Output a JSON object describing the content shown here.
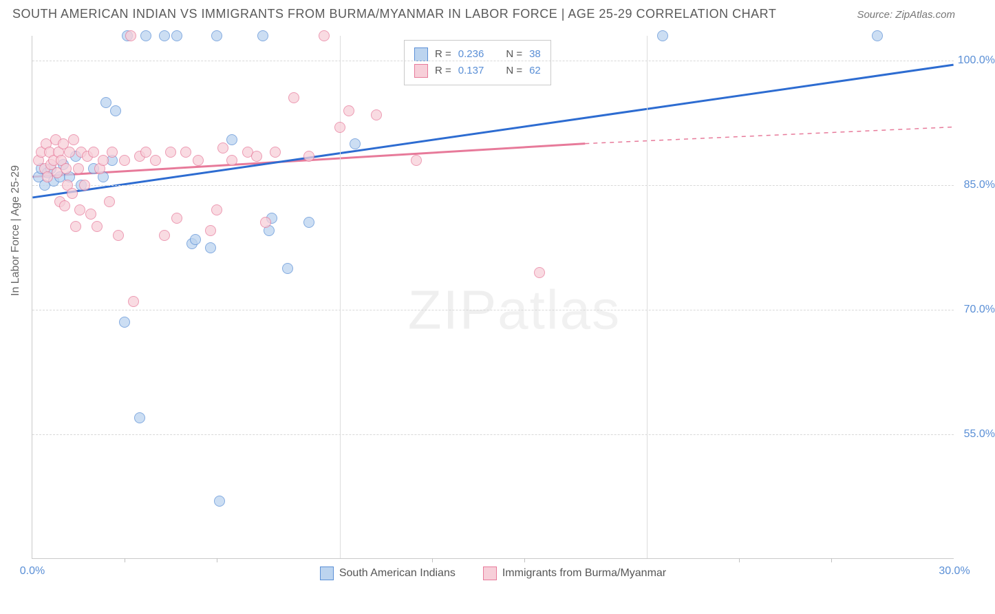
{
  "header": {
    "title": "SOUTH AMERICAN INDIAN VS IMMIGRANTS FROM BURMA/MYANMAR IN LABOR FORCE | AGE 25-29 CORRELATION CHART",
    "source_label": "Source: ZipAtlas.com"
  },
  "chart": {
    "type": "scatter",
    "background_color": "#ffffff",
    "grid_color": "#d8d8d8",
    "axis_color": "#c9c9c9",
    "ylabel": "In Labor Force | Age 25-29",
    "label_fontsize": 16,
    "label_color": "#666666",
    "tick_color": "#5a8fd6",
    "xlim": [
      0,
      30
    ],
    "ylim": [
      40,
      103
    ],
    "xticks": [
      0,
      10,
      20,
      30
    ],
    "xtick_labels": [
      "0.0%",
      "",
      "",
      "30.0%"
    ],
    "yticks": [
      55,
      70,
      85,
      100
    ],
    "ytick_labels": [
      "55.0%",
      "70.0%",
      "85.0%",
      "100.0%"
    ],
    "xgrid_at": [
      10,
      20
    ],
    "tick_marks_x": [
      3,
      6,
      13,
      16,
      23,
      26
    ],
    "series": [
      {
        "key": "blue",
        "name": "South American Indians",
        "color_fill": "#bcd4ef",
        "color_stroke": "#5a8fd6",
        "R": "0.236",
        "N": "38",
        "trend": {
          "x1": 0,
          "y1": 83.5,
          "x2": 30,
          "y2": 99.5,
          "dash_from_x": 30
        },
        "points": [
          [
            0.2,
            86
          ],
          [
            0.3,
            87
          ],
          [
            0.4,
            85
          ],
          [
            0.5,
            86.5
          ],
          [
            0.6,
            87
          ],
          [
            0.7,
            85.5
          ],
          [
            0.9,
            86
          ],
          [
            1.0,
            87.5
          ],
          [
            1.2,
            86
          ],
          [
            1.4,
            88.5
          ],
          [
            1.6,
            85
          ],
          [
            2.0,
            87
          ],
          [
            2.3,
            86
          ],
          [
            2.4,
            95
          ],
          [
            2.6,
            88
          ],
          [
            2.7,
            94
          ],
          [
            3.0,
            68.5
          ],
          [
            3.1,
            103
          ],
          [
            3.5,
            57
          ],
          [
            3.7,
            103
          ],
          [
            4.3,
            103
          ],
          [
            4.7,
            103
          ],
          [
            5.2,
            78
          ],
          [
            5.3,
            78.5
          ],
          [
            5.8,
            77.5
          ],
          [
            6.0,
            103
          ],
          [
            6.1,
            47
          ],
          [
            6.5,
            90.5
          ],
          [
            7.5,
            103
          ],
          [
            7.7,
            79.5
          ],
          [
            7.8,
            81
          ],
          [
            8.3,
            75
          ],
          [
            9.0,
            80.5
          ],
          [
            10.5,
            90
          ],
          [
            20.5,
            103
          ],
          [
            27.5,
            103
          ]
        ]
      },
      {
        "key": "pink",
        "name": "Immigrants from Burma/Myanmar",
        "color_fill": "#f7cfd9",
        "color_stroke": "#e77a9a",
        "R": "0.137",
        "N": "62",
        "trend": {
          "x1": 0,
          "y1": 86,
          "x2": 18,
          "y2": 90,
          "dash_from_x": 18,
          "dash_to_x": 30,
          "dash_to_y": 92
        },
        "points": [
          [
            0.2,
            88
          ],
          [
            0.3,
            89
          ],
          [
            0.4,
            87
          ],
          [
            0.45,
            90
          ],
          [
            0.5,
            86
          ],
          [
            0.55,
            89
          ],
          [
            0.6,
            87.5
          ],
          [
            0.7,
            88
          ],
          [
            0.75,
            90.5
          ],
          [
            0.8,
            86.5
          ],
          [
            0.85,
            89
          ],
          [
            0.9,
            83
          ],
          [
            0.95,
            88
          ],
          [
            1.0,
            90
          ],
          [
            1.05,
            82.5
          ],
          [
            1.1,
            87
          ],
          [
            1.15,
            85
          ],
          [
            1.2,
            89
          ],
          [
            1.3,
            84
          ],
          [
            1.35,
            90.5
          ],
          [
            1.4,
            80
          ],
          [
            1.5,
            87
          ],
          [
            1.55,
            82
          ],
          [
            1.6,
            89
          ],
          [
            1.7,
            85
          ],
          [
            1.8,
            88.5
          ],
          [
            1.9,
            81.5
          ],
          [
            2.0,
            89
          ],
          [
            2.1,
            80
          ],
          [
            2.2,
            87
          ],
          [
            2.3,
            88
          ],
          [
            2.5,
            83
          ],
          [
            2.6,
            89
          ],
          [
            2.8,
            79
          ],
          [
            3.0,
            88
          ],
          [
            3.2,
            103
          ],
          [
            3.3,
            71
          ],
          [
            3.5,
            88.5
          ],
          [
            3.7,
            89
          ],
          [
            4.0,
            88
          ],
          [
            4.3,
            79
          ],
          [
            4.5,
            89
          ],
          [
            4.7,
            81
          ],
          [
            5.0,
            89
          ],
          [
            5.4,
            88
          ],
          [
            5.8,
            79.5
          ],
          [
            6.0,
            82
          ],
          [
            6.2,
            89.5
          ],
          [
            6.5,
            88
          ],
          [
            7.0,
            89
          ],
          [
            7.3,
            88.5
          ],
          [
            7.6,
            80.5
          ],
          [
            7.9,
            89
          ],
          [
            8.5,
            95.5
          ],
          [
            9.0,
            88.5
          ],
          [
            9.5,
            103
          ],
          [
            10.0,
            92
          ],
          [
            10.3,
            94
          ],
          [
            11.2,
            93.5
          ],
          [
            12.5,
            88
          ],
          [
            16.5,
            74.5
          ]
        ]
      }
    ],
    "stats_legend": {
      "R_label": "R =",
      "N_label": "N ="
    },
    "watermark": {
      "part1": "ZIP",
      "part2": "atlas"
    }
  }
}
